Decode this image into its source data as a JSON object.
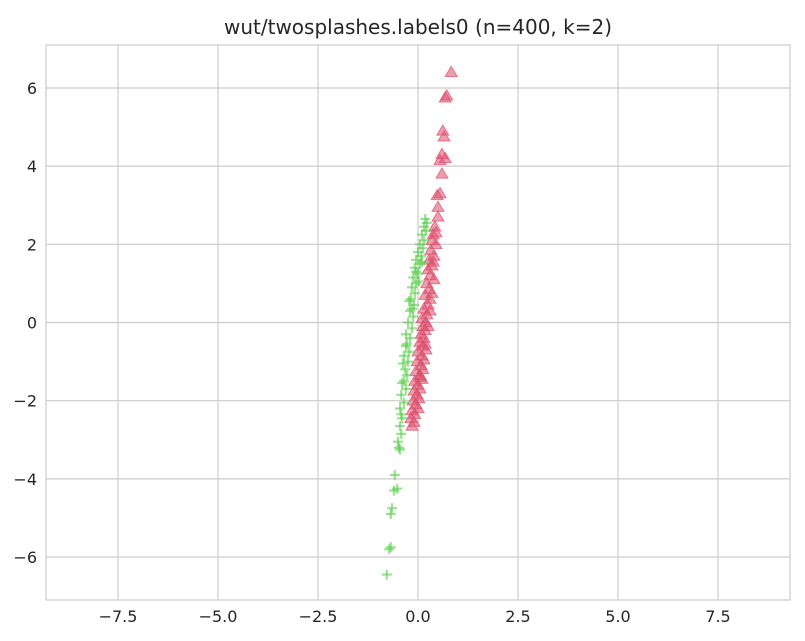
{
  "chart_data": {
    "type": "scatter",
    "title": "wut/twosplashes.labels0 (n=400, k=2)",
    "xlabel": "",
    "ylabel": "",
    "xlim": [
      -9.3,
      9.3
    ],
    "ylim": [
      -7.1,
      7.1
    ],
    "xticks": [
      -7.5,
      -5.0,
      -2.5,
      0.0,
      2.5,
      5.0,
      7.5
    ],
    "xtick_labels": [
      "−7.5",
      "−5.0",
      "−2.5",
      "0.0",
      "2.5",
      "5.0",
      "7.5"
    ],
    "yticks": [
      -6,
      -4,
      -2,
      0,
      2,
      4,
      6
    ],
    "ytick_labels": [
      "−6",
      "−4",
      "−2",
      "0",
      "2",
      "4",
      "6"
    ],
    "grid": true,
    "legend": "none",
    "series": [
      {
        "marker": "triangle",
        "color": "#dc4e6e",
        "points": [
          [
            0.83,
            6.4
          ],
          [
            0.72,
            5.8
          ],
          [
            0.68,
            5.75
          ],
          [
            0.62,
            4.9
          ],
          [
            0.65,
            4.75
          ],
          [
            0.6,
            4.3
          ],
          [
            0.68,
            4.2
          ],
          [
            0.55,
            4.15
          ],
          [
            0.6,
            3.8
          ],
          [
            0.55,
            3.3
          ],
          [
            0.48,
            3.25
          ],
          [
            0.5,
            2.95
          ],
          [
            0.5,
            2.7
          ],
          [
            0.42,
            2.45
          ],
          [
            0.38,
            2.25
          ],
          [
            0.45,
            2.0
          ],
          [
            0.35,
            2.1
          ],
          [
            0.32,
            1.85
          ],
          [
            0.4,
            1.7
          ],
          [
            0.28,
            1.6
          ],
          [
            0.35,
            1.45
          ],
          [
            0.25,
            1.35
          ],
          [
            0.3,
            1.2
          ],
          [
            0.22,
            1.0
          ],
          [
            0.28,
            0.85
          ],
          [
            0.18,
            0.7
          ],
          [
            0.3,
            0.6
          ],
          [
            0.25,
            0.45
          ],
          [
            0.15,
            0.35
          ],
          [
            0.22,
            0.2
          ],
          [
            0.1,
            0.1
          ],
          [
            0.2,
            0.0
          ],
          [
            0.12,
            -0.1
          ],
          [
            0.18,
            -0.2
          ],
          [
            0.08,
            -0.3
          ],
          [
            0.15,
            -0.4
          ],
          [
            0.05,
            -0.5
          ],
          [
            0.12,
            -0.6
          ],
          [
            0.2,
            -0.7
          ],
          [
            0.0,
            -0.75
          ],
          [
            0.1,
            -0.85
          ],
          [
            0.15,
            -0.95
          ],
          [
            -0.02,
            -1.0
          ],
          [
            0.08,
            -1.1
          ],
          [
            0.12,
            -1.2
          ],
          [
            -0.05,
            -1.25
          ],
          [
            0.05,
            -1.35
          ],
          [
            0.1,
            -1.45
          ],
          [
            -0.08,
            -1.5
          ],
          [
            0.0,
            -1.6
          ],
          [
            0.05,
            -1.7
          ],
          [
            -0.1,
            -1.75
          ],
          [
            -0.02,
            -1.85
          ],
          [
            0.02,
            -1.95
          ],
          [
            -0.12,
            -2.0
          ],
          [
            -0.05,
            -2.1
          ],
          [
            0.0,
            -2.2
          ],
          [
            -0.15,
            -2.25
          ],
          [
            -0.08,
            -2.35
          ],
          [
            -0.18,
            -2.45
          ],
          [
            -0.1,
            -2.55
          ],
          [
            -0.15,
            -2.65
          ],
          [
            0.05,
            -1.4
          ],
          [
            0.18,
            -0.55
          ],
          [
            0.25,
            -0.1
          ],
          [
            0.3,
            0.3
          ],
          [
            0.35,
            0.75
          ],
          [
            0.4,
            1.1
          ],
          [
            0.38,
            1.55
          ],
          [
            0.45,
            2.3
          ]
        ]
      },
      {
        "marker": "plus",
        "color": "#5ccf4f",
        "points": [
          [
            -0.78,
            -6.45
          ],
          [
            -0.72,
            -5.8
          ],
          [
            -0.68,
            -5.75
          ],
          [
            -0.68,
            -4.9
          ],
          [
            -0.65,
            -4.75
          ],
          [
            -0.6,
            -4.3
          ],
          [
            -0.52,
            -4.25
          ],
          [
            -0.58,
            -3.9
          ],
          [
            -0.45,
            -3.25
          ],
          [
            -0.48,
            -3.2
          ],
          [
            -0.42,
            -2.85
          ],
          [
            -0.45,
            -2.65
          ],
          [
            -0.4,
            -2.45
          ],
          [
            -0.45,
            -2.2
          ],
          [
            -0.35,
            -2.05
          ],
          [
            -0.42,
            -1.85
          ],
          [
            -0.3,
            -1.7
          ],
          [
            -0.4,
            -1.55
          ],
          [
            -0.28,
            -1.35
          ],
          [
            -0.32,
            -1.2
          ],
          [
            -0.25,
            -1.0
          ],
          [
            -0.35,
            -0.85
          ],
          [
            -0.22,
            -0.75
          ],
          [
            -0.28,
            -0.55
          ],
          [
            -0.2,
            -0.4
          ],
          [
            -0.3,
            -0.3
          ],
          [
            -0.15,
            -0.15
          ],
          [
            -0.25,
            0.0
          ],
          [
            -0.12,
            0.15
          ],
          [
            -0.2,
            0.3
          ],
          [
            -0.1,
            0.45
          ],
          [
            -0.18,
            0.6
          ],
          [
            -0.08,
            0.75
          ],
          [
            -0.15,
            0.9
          ],
          [
            -0.05,
            1.0
          ],
          [
            -0.12,
            1.15
          ],
          [
            0.0,
            1.25
          ],
          [
            -0.08,
            1.4
          ],
          [
            0.05,
            1.5
          ],
          [
            -0.05,
            1.6
          ],
          [
            0.08,
            1.7
          ],
          [
            0.0,
            1.8
          ],
          [
            0.12,
            1.9
          ],
          [
            0.05,
            2.0
          ],
          [
            0.15,
            2.1
          ],
          [
            0.1,
            2.25
          ],
          [
            0.2,
            2.35
          ],
          [
            0.15,
            2.45
          ],
          [
            0.22,
            2.55
          ],
          [
            0.18,
            2.65
          ],
          [
            -0.05,
            1.3
          ],
          [
            0.02,
            1.05
          ],
          [
            0.1,
            1.55
          ],
          [
            -0.15,
            0.35
          ],
          [
            -0.22,
            0.55
          ],
          [
            -0.3,
            -0.6
          ],
          [
            -0.38,
            -1.05
          ],
          [
            -0.35,
            -1.5
          ],
          [
            -0.42,
            -2.35
          ],
          [
            -0.5,
            -3.05
          ]
        ]
      }
    ]
  }
}
